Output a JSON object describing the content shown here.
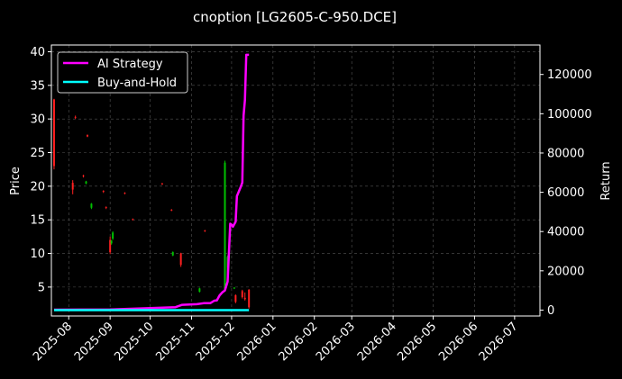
{
  "chart_data": {
    "type": "line",
    "title": "cnoption [LG2605-C-950.DCE]",
    "xlabel": "",
    "ylabel": "Price",
    "y2label": "Return",
    "x_range": [
      "2025-07-19",
      "2026-07-20"
    ],
    "x_ticks": [
      "2025-08",
      "2025-09",
      "2025-10",
      "2025-11",
      "2025-12",
      "2026-01",
      "2026-02",
      "2026-03",
      "2026-04",
      "2026-05",
      "2026-06",
      "2026-07"
    ],
    "y_range": [
      0.7,
      41.0
    ],
    "y_ticks": [
      5,
      10,
      15,
      20,
      25,
      30,
      35,
      40
    ],
    "y2_range": [
      -3000,
      135000
    ],
    "y2_ticks": [
      0,
      20000,
      40000,
      60000,
      80000,
      100000,
      120000
    ],
    "grid": true,
    "legend": {
      "position": "top-left",
      "entries": [
        "AI Strategy",
        "Buy-and-Hold"
      ]
    },
    "colors": {
      "background": "#000000",
      "text": "#ffffff",
      "grid": "#555555",
      "up": "#00c000",
      "down": "#ff2020",
      "ai": "#ff00ff",
      "bh": "#00ffff"
    },
    "candles": [
      {
        "date": "2025-07-21",
        "open": 32.9,
        "high": 33.0,
        "low": 22.5,
        "close": 23.0
      },
      {
        "date": "2025-08-04",
        "open": 20.5,
        "high": 20.9,
        "low": 18.8,
        "close": 19.5
      },
      {
        "date": "2025-08-06",
        "open": 30.3,
        "high": 30.5,
        "low": 30.0,
        "close": 30.2
      },
      {
        "date": "2025-08-12",
        "open": 21.6,
        "high": 21.7,
        "low": 21.3,
        "close": 21.5
      },
      {
        "date": "2025-08-14",
        "open": 20.4,
        "high": 20.8,
        "low": 20.3,
        "close": 20.7
      },
      {
        "date": "2025-08-15",
        "open": 27.6,
        "high": 27.7,
        "low": 27.3,
        "close": 27.4
      },
      {
        "date": "2025-08-18",
        "open": 16.8,
        "high": 17.5,
        "low": 16.6,
        "close": 17.4
      },
      {
        "date": "2025-08-27",
        "open": 19.3,
        "high": 19.4,
        "low": 19.0,
        "close": 19.2
      },
      {
        "date": "2025-08-29",
        "open": 16.9,
        "high": 17.0,
        "low": 16.6,
        "close": 16.8
      },
      {
        "date": "2025-09-01",
        "open": 12.0,
        "high": 12.5,
        "low": 9.9,
        "close": 10.2
      },
      {
        "date": "2025-09-02",
        "open": 11.5,
        "high": 12.0,
        "low": 11.3,
        "close": 11.9
      },
      {
        "date": "2025-09-03",
        "open": 12.2,
        "high": 13.3,
        "low": 12.0,
        "close": 13.1
      },
      {
        "date": "2025-09-12",
        "open": 19.0,
        "high": 19.1,
        "low": 18.8,
        "close": 18.9
      },
      {
        "date": "2025-09-18",
        "open": 15.1,
        "high": 15.2,
        "low": 14.9,
        "close": 15.0
      },
      {
        "date": "2025-10-10",
        "open": 20.4,
        "high": 20.5,
        "low": 20.2,
        "close": 20.3
      },
      {
        "date": "2025-10-17",
        "open": 16.5,
        "high": 16.6,
        "low": 16.3,
        "close": 16.4
      },
      {
        "date": "2025-10-18",
        "open": 9.7,
        "high": 10.3,
        "low": 9.6,
        "close": 10.2
      },
      {
        "date": "2025-10-24",
        "open": 10.0,
        "high": 10.1,
        "low": 8.0,
        "close": 8.3
      },
      {
        "date": "2025-11-07",
        "open": 4.3,
        "high": 4.9,
        "low": 4.2,
        "close": 4.8
      },
      {
        "date": "2025-11-11",
        "open": 13.4,
        "high": 13.5,
        "low": 13.2,
        "close": 13.3
      },
      {
        "date": "2025-11-26",
        "open": 4.5,
        "high": 23.8,
        "low": 4.4,
        "close": 23.5
      },
      {
        "date": "2025-11-28",
        "open": 6.0,
        "high": 9.7,
        "low": 5.8,
        "close": 9.5
      },
      {
        "date": "2025-12-03",
        "open": 4.9,
        "high": 5.0,
        "low": 4.7,
        "close": 4.9
      },
      {
        "date": "2025-12-04",
        "open": 3.8,
        "high": 3.9,
        "low": 2.6,
        "close": 2.8
      },
      {
        "date": "2025-12-09",
        "open": 4.4,
        "high": 4.6,
        "low": 3.3,
        "close": 3.5
      },
      {
        "date": "2025-12-11",
        "open": 3.4,
        "high": 4.2,
        "low": 3.0,
        "close": 3.2
      },
      {
        "date": "2025-12-14",
        "open": 4.6,
        "high": 4.7,
        "low": 1.8,
        "close": 2.0
      }
    ],
    "series": [
      {
        "name": "AI Strategy",
        "type": "line",
        "axis": "right",
        "x": [
          "2025-07-21",
          "2025-09-01",
          "2025-10-01",
          "2025-10-20",
          "2025-10-25",
          "2025-11-05",
          "2025-11-10",
          "2025-11-15",
          "2025-11-18",
          "2025-11-20",
          "2025-11-22",
          "2025-11-24",
          "2025-11-26",
          "2025-11-28",
          "2025-11-30",
          "2025-12-01",
          "2025-12-02",
          "2025-12-04",
          "2025-12-05",
          "2025-12-08",
          "2025-12-09",
          "2025-12-10",
          "2025-12-11",
          "2025-12-12",
          "2025-12-14"
        ],
        "y": [
          200,
          300,
          1000,
          1500,
          2700,
          3000,
          3500,
          3500,
          4800,
          5000,
          7500,
          9000,
          10000,
          14500,
          44000,
          43500,
          42500,
          45000,
          58000,
          63000,
          65000,
          99000,
          107000,
          130000,
          130000
        ]
      },
      {
        "name": "Buy-and-Hold",
        "type": "line",
        "axis": "right",
        "x": [
          "2025-07-21",
          "2025-12-14"
        ],
        "y": [
          0,
          0
        ]
      }
    ]
  }
}
